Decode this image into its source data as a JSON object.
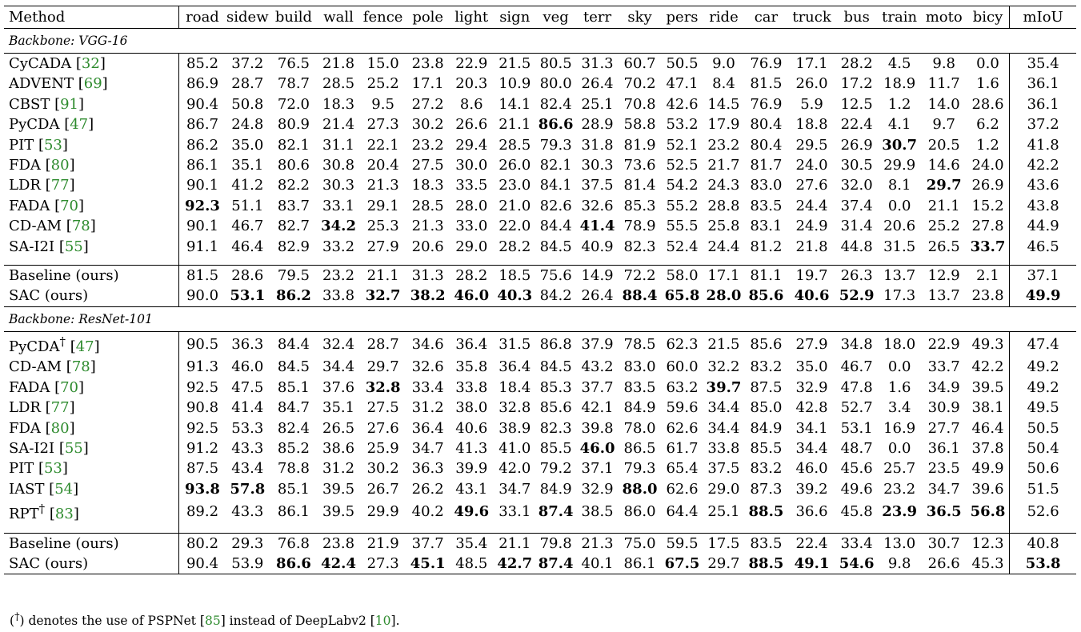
{
  "columns": [
    "Method",
    "road",
    "sidew",
    "build",
    "wall",
    "fence",
    "pole",
    "light",
    "sign",
    "veg",
    "terr",
    "sky",
    "pers",
    "ride",
    "car",
    "truck",
    "bus",
    "train",
    "moto",
    "bicy",
    "mIoU"
  ],
  "sections": [
    {
      "title": "Backbone: VGG-16",
      "groups": [
        [
          {
            "name": "CyCADA",
            "dagger": false,
            "ref": "32",
            "values": [
              "85.2",
              "37.2",
              "76.5",
              "21.8",
              "15.0",
              "23.8",
              "22.9",
              "21.5",
              "80.5",
              "31.3",
              "60.7",
              "50.5",
              "9.0",
              "76.9",
              "17.1",
              "28.2",
              "4.5",
              "9.8",
              "0.0",
              "35.4"
            ],
            "bold": []
          },
          {
            "name": "ADVENT",
            "dagger": false,
            "ref": "69",
            "values": [
              "86.9",
              "28.7",
              "78.7",
              "28.5",
              "25.2",
              "17.1",
              "20.3",
              "10.9",
              "80.0",
              "26.4",
              "70.2",
              "47.1",
              "8.4",
              "81.5",
              "26.0",
              "17.2",
              "18.9",
              "11.7",
              "1.6",
              "36.1"
            ],
            "bold": []
          },
          {
            "name": "CBST",
            "dagger": false,
            "ref": "91",
            "values": [
              "90.4",
              "50.8",
              "72.0",
              "18.3",
              "9.5",
              "27.2",
              "8.6",
              "14.1",
              "82.4",
              "25.1",
              "70.8",
              "42.6",
              "14.5",
              "76.9",
              "5.9",
              "12.5",
              "1.2",
              "14.0",
              "28.6",
              "36.1"
            ],
            "bold": []
          },
          {
            "name": "PyCDA",
            "dagger": false,
            "ref": "47",
            "values": [
              "86.7",
              "24.8",
              "80.9",
              "21.4",
              "27.3",
              "30.2",
              "26.6",
              "21.1",
              "86.6",
              "28.9",
              "58.8",
              "53.2",
              "17.9",
              "80.4",
              "18.8",
              "22.4",
              "4.1",
              "9.7",
              "6.2",
              "37.2"
            ],
            "bold": [
              8
            ]
          },
          {
            "name": "PIT",
            "dagger": false,
            "ref": "53",
            "values": [
              "86.2",
              "35.0",
              "82.1",
              "31.1",
              "22.1",
              "23.2",
              "29.4",
              "28.5",
              "79.3",
              "31.8",
              "81.9",
              "52.1",
              "23.2",
              "80.4",
              "29.5",
              "26.9",
              "30.7",
              "20.5",
              "1.2",
              "41.8"
            ],
            "bold": [
              16
            ]
          },
          {
            "name": "FDA",
            "dagger": false,
            "ref": "80",
            "values": [
              "86.1",
              "35.1",
              "80.6",
              "30.8",
              "20.4",
              "27.5",
              "30.0",
              "26.0",
              "82.1",
              "30.3",
              "73.6",
              "52.5",
              "21.7",
              "81.7",
              "24.0",
              "30.5",
              "29.9",
              "14.6",
              "24.0",
              "42.2"
            ],
            "bold": []
          },
          {
            "name": "LDR",
            "dagger": false,
            "ref": "77",
            "values": [
              "90.1",
              "41.2",
              "82.2",
              "30.3",
              "21.3",
              "18.3",
              "33.5",
              "23.0",
              "84.1",
              "37.5",
              "81.4",
              "54.2",
              "24.3",
              "83.0",
              "27.6",
              "32.0",
              "8.1",
              "29.7",
              "26.9",
              "43.6"
            ],
            "bold": [
              17
            ]
          },
          {
            "name": "FADA",
            "dagger": false,
            "ref": "70",
            "values": [
              "92.3",
              "51.1",
              "83.7",
              "33.1",
              "29.1",
              "28.5",
              "28.0",
              "21.0",
              "82.6",
              "32.6",
              "85.3",
              "55.2",
              "28.8",
              "83.5",
              "24.4",
              "37.4",
              "0.0",
              "21.1",
              "15.2",
              "43.8"
            ],
            "bold": [
              0
            ]
          },
          {
            "name": "CD-AM",
            "dagger": false,
            "ref": "78",
            "values": [
              "90.1",
              "46.7",
              "82.7",
              "34.2",
              "25.3",
              "21.3",
              "33.0",
              "22.0",
              "84.4",
              "41.4",
              "78.9",
              "55.5",
              "25.8",
              "83.1",
              "24.9",
              "31.4",
              "20.6",
              "25.2",
              "27.8",
              "44.9"
            ],
            "bold": [
              3,
              9
            ]
          },
          {
            "name": "SA-I2I",
            "dagger": false,
            "ref": "55",
            "values": [
              "91.1",
              "46.4",
              "82.9",
              "33.2",
              "27.9",
              "20.6",
              "29.0",
              "28.2",
              "84.5",
              "40.9",
              "82.3",
              "52.4",
              "24.4",
              "81.2",
              "21.8",
              "44.8",
              "31.5",
              "26.5",
              "33.7",
              "46.5"
            ],
            "bold": [
              18
            ]
          }
        ],
        [
          {
            "name": "Baseline (ours)",
            "dagger": false,
            "ref": "",
            "values": [
              "81.5",
              "28.6",
              "79.5",
              "23.2",
              "21.1",
              "31.3",
              "28.2",
              "18.5",
              "75.6",
              "14.9",
              "72.2",
              "58.0",
              "17.1",
              "81.1",
              "19.7",
              "26.3",
              "13.7",
              "12.9",
              "2.1",
              "37.1"
            ],
            "bold": []
          },
          {
            "name": "SAC (ours)",
            "dagger": false,
            "ref": "",
            "values": [
              "90.0",
              "53.1",
              "86.2",
              "33.8",
              "32.7",
              "38.2",
              "46.0",
              "40.3",
              "84.2",
              "26.4",
              "88.4",
              "65.8",
              "28.0",
              "85.6",
              "40.6",
              "52.9",
              "17.3",
              "13.7",
              "23.8",
              "49.9"
            ],
            "bold": [
              1,
              2,
              4,
              5,
              6,
              7,
              10,
              11,
              12,
              13,
              14,
              15,
              19
            ]
          }
        ]
      ]
    },
    {
      "title": "Backbone: ResNet-101",
      "groups": [
        [
          {
            "name": "PyCDA",
            "dagger": true,
            "ref": "47",
            "values": [
              "90.5",
              "36.3",
              "84.4",
              "32.4",
              "28.7",
              "34.6",
              "36.4",
              "31.5",
              "86.8",
              "37.9",
              "78.5",
              "62.3",
              "21.5",
              "85.6",
              "27.9",
              "34.8",
              "18.0",
              "22.9",
              "49.3",
              "47.4"
            ],
            "bold": []
          },
          {
            "name": "CD-AM",
            "dagger": false,
            "ref": "78",
            "values": [
              "91.3",
              "46.0",
              "84.5",
              "34.4",
              "29.7",
              "32.6",
              "35.8",
              "36.4",
              "84.5",
              "43.2",
              "83.0",
              "60.0",
              "32.2",
              "83.2",
              "35.0",
              "46.7",
              "0.0",
              "33.7",
              "42.2",
              "49.2"
            ],
            "bold": []
          },
          {
            "name": "FADA",
            "dagger": false,
            "ref": "70",
            "values": [
              "92.5",
              "47.5",
              "85.1",
              "37.6",
              "32.8",
              "33.4",
              "33.8",
              "18.4",
              "85.3",
              "37.7",
              "83.5",
              "63.2",
              "39.7",
              "87.5",
              "32.9",
              "47.8",
              "1.6",
              "34.9",
              "39.5",
              "49.2"
            ],
            "bold": [
              4,
              12
            ]
          },
          {
            "name": "LDR",
            "dagger": false,
            "ref": "77",
            "values": [
              "90.8",
              "41.4",
              "84.7",
              "35.1",
              "27.5",
              "31.2",
              "38.0",
              "32.8",
              "85.6",
              "42.1",
              "84.9",
              "59.6",
              "34.4",
              "85.0",
              "42.8",
              "52.7",
              "3.4",
              "30.9",
              "38.1",
              "49.5"
            ],
            "bold": []
          },
          {
            "name": "FDA",
            "dagger": false,
            "ref": "80",
            "values": [
              "92.5",
              "53.3",
              "82.4",
              "26.5",
              "27.6",
              "36.4",
              "40.6",
              "38.9",
              "82.3",
              "39.8",
              "78.0",
              "62.6",
              "34.4",
              "84.9",
              "34.1",
              "53.1",
              "16.9",
              "27.7",
              "46.4",
              "50.5"
            ],
            "bold": []
          },
          {
            "name": "SA-I2I",
            "dagger": false,
            "ref": "55",
            "values": [
              "91.2",
              "43.3",
              "85.2",
              "38.6",
              "25.9",
              "34.7",
              "41.3",
              "41.0",
              "85.5",
              "46.0",
              "86.5",
              "61.7",
              "33.8",
              "85.5",
              "34.4",
              "48.7",
              "0.0",
              "36.1",
              "37.8",
              "50.4"
            ],
            "bold": [
              9
            ]
          },
          {
            "name": "PIT",
            "dagger": false,
            "ref": "53",
            "values": [
              "87.5",
              "43.4",
              "78.8",
              "31.2",
              "30.2",
              "36.3",
              "39.9",
              "42.0",
              "79.2",
              "37.1",
              "79.3",
              "65.4",
              "37.5",
              "83.2",
              "46.0",
              "45.6",
              "25.7",
              "23.5",
              "49.9",
              "50.6"
            ],
            "bold": []
          },
          {
            "name": "IAST",
            "dagger": false,
            "ref": "54",
            "values": [
              "93.8",
              "57.8",
              "85.1",
              "39.5",
              "26.7",
              "26.2",
              "43.1",
              "34.7",
              "84.9",
              "32.9",
              "88.0",
              "62.6",
              "29.0",
              "87.3",
              "39.2",
              "49.6",
              "23.2",
              "34.7",
              "39.6",
              "51.5"
            ],
            "bold": [
              0,
              1,
              10
            ]
          },
          {
            "name": "RPT",
            "dagger": true,
            "ref": "83",
            "values": [
              "89.2",
              "43.3",
              "86.1",
              "39.5",
              "29.9",
              "40.2",
              "49.6",
              "33.1",
              "87.4",
              "38.5",
              "86.0",
              "64.4",
              "25.1",
              "88.5",
              "36.6",
              "45.8",
              "23.9",
              "36.5",
              "56.8",
              "52.6"
            ],
            "bold": [
              6,
              8,
              13,
              16,
              17,
              18
            ]
          }
        ],
        [
          {
            "name": "Baseline (ours)",
            "dagger": false,
            "ref": "",
            "values": [
              "80.2",
              "29.3",
              "76.8",
              "23.8",
              "21.9",
              "37.7",
              "35.4",
              "21.1",
              "79.8",
              "21.3",
              "75.0",
              "59.5",
              "17.5",
              "83.5",
              "22.4",
              "33.4",
              "13.0",
              "30.7",
              "12.3",
              "40.8"
            ],
            "bold": []
          },
          {
            "name": "SAC (ours)",
            "dagger": false,
            "ref": "",
            "values": [
              "90.4",
              "53.9",
              "86.6",
              "42.4",
              "27.3",
              "45.1",
              "48.5",
              "42.7",
              "87.4",
              "40.1",
              "86.1",
              "67.5",
              "29.7",
              "88.5",
              "49.1",
              "54.6",
              "9.8",
              "26.6",
              "45.3",
              "53.8"
            ],
            "bold": [
              2,
              3,
              5,
              7,
              8,
              11,
              13,
              14,
              15,
              19
            ]
          }
        ]
      ]
    }
  ],
  "footnote": {
    "open": "(",
    "dagger": "†",
    "text1": ") denotes the use of PSPNet [",
    "ref1": "85",
    "text2": "] instead of DeepLabv2 [",
    "ref2": "10",
    "text3": "]."
  }
}
